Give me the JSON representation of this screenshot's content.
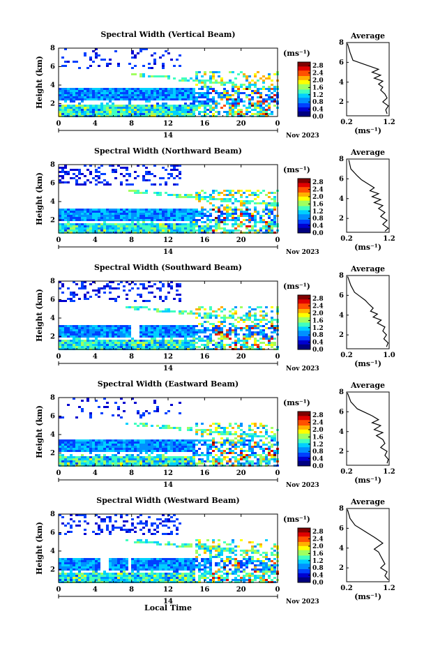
{
  "chart_data": {
    "type": "heatmap",
    "xlabel": "Local Time",
    "date_label": "Nov 2023",
    "day_label": "14",
    "x_ticks": [
      "0",
      "4",
      "8",
      "12",
      "16",
      "20",
      "0"
    ],
    "x_range_hours": [
      0,
      24
    ],
    "y_ticks": [
      "2",
      "4",
      "6",
      "8"
    ],
    "y_range_km": [
      0.6,
      8
    ],
    "ylabel": "Height (km)",
    "colorbar_unit": "(ms⁻¹)",
    "colorbar_ticks": [
      "0.0",
      "0.4",
      "0.8",
      "1.2",
      "1.6",
      "2.0",
      "2.4",
      "2.8"
    ],
    "colorbar_range": [
      0,
      3.0
    ],
    "avg_title": "Average",
    "avg_xlabel": "(ms⁻¹)",
    "panels": [
      {
        "title": "Spectral Width (Vertical Beam)",
        "avg_ticks": [
          "0.2",
          "1.2"
        ],
        "avg_xlim": [
          0.2,
          1.2
        ],
        "low_band_top_km": 3.6,
        "gaps": [],
        "sparse_top": 0.15,
        "profile": [
          [
            0.22,
            7.9
          ],
          [
            0.28,
            7.0
          ],
          [
            0.35,
            6.2
          ],
          [
            0.55,
            5.9
          ],
          [
            0.75,
            5.6
          ],
          [
            0.95,
            5.3
          ],
          [
            0.8,
            5.0
          ],
          [
            1.0,
            4.7
          ],
          [
            0.85,
            4.4
          ],
          [
            1.05,
            4.1
          ],
          [
            0.95,
            3.8
          ],
          [
            1.05,
            3.5
          ],
          [
            1.0,
            3.2
          ],
          [
            1.1,
            2.8
          ],
          [
            1.15,
            2.4
          ],
          [
            1.05,
            2.0
          ],
          [
            1.18,
            1.6
          ],
          [
            1.12,
            1.2
          ],
          [
            1.15,
            0.8
          ]
        ]
      },
      {
        "title": "Spectral Width (Northward Beam)",
        "avg_ticks": [
          "0.2",
          "1.2"
        ],
        "avg_xlim": [
          0.2,
          1.2
        ],
        "low_band_top_km": 3.3,
        "gaps": [],
        "sparse_top": 0.28,
        "profile": [
          [
            0.25,
            7.9
          ],
          [
            0.3,
            7.0
          ],
          [
            0.45,
            6.3
          ],
          [
            0.55,
            5.9
          ],
          [
            0.7,
            5.5
          ],
          [
            0.85,
            5.1
          ],
          [
            0.75,
            4.8
          ],
          [
            0.95,
            4.5
          ],
          [
            0.8,
            4.2
          ],
          [
            1.0,
            3.9
          ],
          [
            0.85,
            3.6
          ],
          [
            1.05,
            3.3
          ],
          [
            0.95,
            3.0
          ],
          [
            1.1,
            2.6
          ],
          [
            1.0,
            2.2
          ],
          [
            1.15,
            1.8
          ],
          [
            1.05,
            1.4
          ],
          [
            1.18,
            1.0
          ],
          [
            1.1,
            0.7
          ]
        ]
      },
      {
        "title": "Spectral Width (Southward Beam)",
        "avg_ticks": [
          "0.2",
          "1.0"
        ],
        "avg_xlim": [
          0.2,
          1.0
        ],
        "low_band_top_km": 3.3,
        "gaps": [
          [
            7.7,
            8.8
          ]
        ],
        "sparse_top": 0.3,
        "profile": [
          [
            0.22,
            7.9
          ],
          [
            0.28,
            7.0
          ],
          [
            0.35,
            6.3
          ],
          [
            0.45,
            5.9
          ],
          [
            0.55,
            5.5
          ],
          [
            0.62,
            5.1
          ],
          [
            0.7,
            4.7
          ],
          [
            0.65,
            4.4
          ],
          [
            0.78,
            4.1
          ],
          [
            0.7,
            3.8
          ],
          [
            0.85,
            3.5
          ],
          [
            0.78,
            3.2
          ],
          [
            0.92,
            2.8
          ],
          [
            0.88,
            2.4
          ],
          [
            0.95,
            2.0
          ],
          [
            0.9,
            1.6
          ],
          [
            0.98,
            1.2
          ],
          [
            0.95,
            0.8
          ]
        ]
      },
      {
        "title": "Spectral Width (Eastward Beam)",
        "avg_ticks": [
          "0.2",
          "1.2"
        ],
        "avg_xlim": [
          0.2,
          1.2
        ],
        "low_band_top_km": 3.4,
        "gaps": [],
        "sparse_top": 0.12,
        "profile": [
          [
            0.22,
            7.9
          ],
          [
            0.3,
            7.0
          ],
          [
            0.45,
            6.3
          ],
          [
            0.65,
            5.9
          ],
          [
            0.8,
            5.6
          ],
          [
            0.95,
            5.2
          ],
          [
            0.8,
            4.9
          ],
          [
            1.0,
            4.6
          ],
          [
            0.85,
            4.2
          ],
          [
            1.05,
            3.9
          ],
          [
            0.9,
            3.6
          ],
          [
            1.05,
            3.2
          ],
          [
            1.1,
            2.8
          ],
          [
            1.0,
            2.4
          ],
          [
            1.15,
            2.0
          ],
          [
            1.1,
            1.6
          ],
          [
            1.18,
            1.2
          ],
          [
            1.15,
            0.8
          ]
        ]
      },
      {
        "title": "Spectral Width (Westward Beam)",
        "avg_ticks": [
          "0.2",
          "1.2"
        ],
        "avg_xlim": [
          0.2,
          1.2
        ],
        "low_band_top_km": 3.3,
        "gaps": [
          [
            4.3,
            5.3
          ],
          [
            7.5,
            7.9
          ]
        ],
        "sparse_top": 0.25,
        "profile": [
          [
            0.22,
            7.9
          ],
          [
            0.28,
            7.0
          ],
          [
            0.4,
            6.3
          ],
          [
            0.55,
            5.9
          ],
          [
            0.7,
            5.5
          ],
          [
            0.85,
            5.1
          ],
          [
            0.95,
            4.8
          ],
          [
            1.05,
            4.5
          ],
          [
            0.95,
            4.2
          ],
          [
            0.85,
            3.9
          ],
          [
            0.95,
            3.6
          ],
          [
            1.0,
            3.2
          ],
          [
            1.05,
            2.8
          ],
          [
            1.1,
            2.4
          ],
          [
            1.0,
            2.0
          ],
          [
            1.15,
            1.6
          ],
          [
            1.1,
            1.2
          ],
          [
            1.18,
            0.8
          ]
        ]
      }
    ]
  }
}
